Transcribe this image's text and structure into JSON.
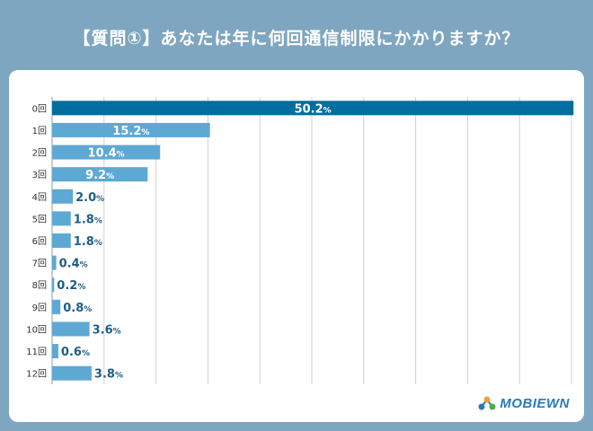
{
  "title": "【質問①】あなたは年に何回通信制限にかかりますか？",
  "logo": "MOBIEWN",
  "colors": {
    "bar_top": "#006e9e",
    "bar": "#5ea9d4",
    "label": "#1f5e86",
    "grid": "#d0d0d0"
  },
  "chart_data": {
    "type": "bar",
    "orientation": "horizontal",
    "categories": [
      "0回",
      "1回",
      "2回",
      "3回",
      "4回",
      "5回",
      "6回",
      "7回",
      "8回",
      "9回",
      "10回",
      "11回",
      "12回"
    ],
    "values": [
      50.2,
      15.2,
      10.4,
      9.2,
      2.0,
      1.8,
      1.8,
      0.4,
      0.2,
      0.8,
      3.6,
      0.6,
      3.8
    ],
    "value_labels": [
      "50.2",
      "15.2",
      "10.4",
      "9.2",
      "2.0",
      "1.8",
      "1.8",
      "0.4",
      "0.2",
      "0.8",
      "3.6",
      "0.6",
      "3.8"
    ],
    "unit": "%",
    "xlim": [
      0,
      50
    ],
    "grid": true
  }
}
